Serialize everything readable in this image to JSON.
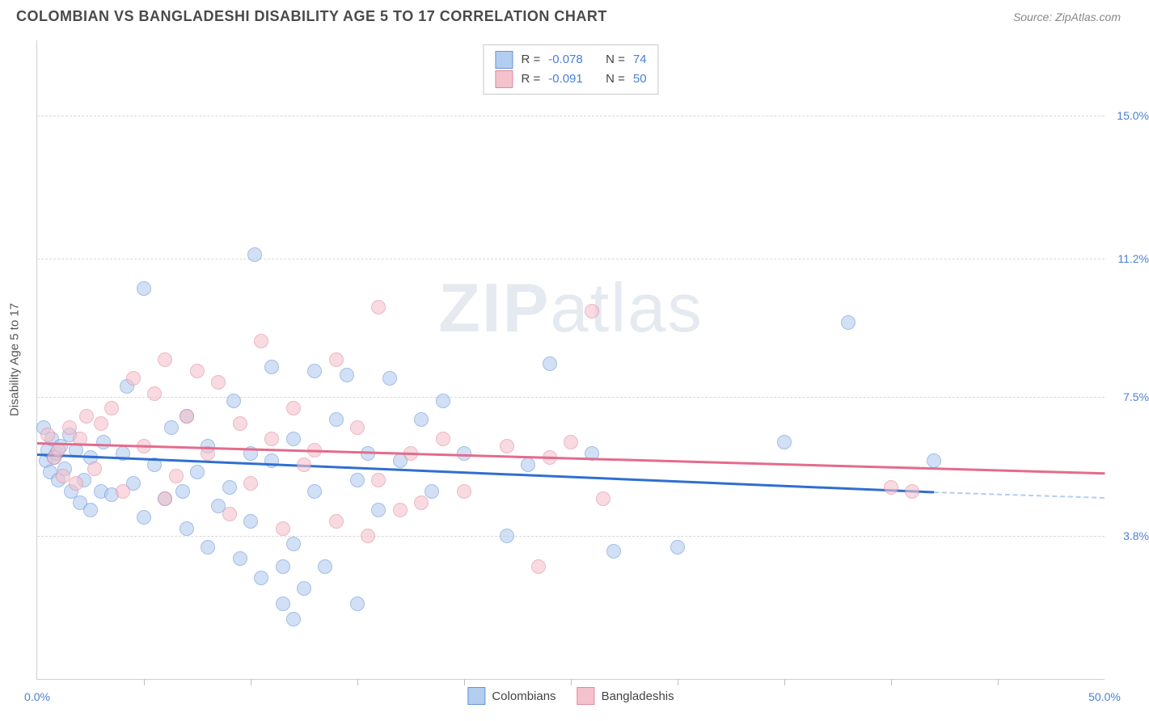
{
  "title": "COLOMBIAN VS BANGLADESHI DISABILITY AGE 5 TO 17 CORRELATION CHART",
  "source": "Source: ZipAtlas.com",
  "watermark": "ZIPatlas",
  "chart": {
    "type": "scatter",
    "ylabel": "Disability Age 5 to 17",
    "xlim": [
      0,
      50
    ],
    "ylim": [
      0,
      17
    ],
    "yticks": [
      {
        "v": 3.8,
        "label": "3.8%"
      },
      {
        "v": 7.5,
        "label": "7.5%"
      },
      {
        "v": 11.2,
        "label": "11.2%"
      },
      {
        "v": 15.0,
        "label": "15.0%"
      }
    ],
    "xticks_minor": [
      5,
      10,
      15,
      20,
      25,
      30,
      35,
      40,
      45
    ],
    "xticks_label": [
      {
        "v": 0,
        "label": "0.0%"
      },
      {
        "v": 50,
        "label": "50.0%"
      }
    ],
    "background_color": "#ffffff",
    "grid_color": "#d8d8d8",
    "series": [
      {
        "name": "Colombians",
        "fill": "#b3cdf0",
        "stroke": "#6694d8",
        "line_color": "#2f6fd0",
        "R": "-0.078",
        "N": "74",
        "trend": {
          "x0": 0,
          "y0": 6.0,
          "x1": 42,
          "y1": 5.0,
          "dash_to_x": 50,
          "dash_y": 4.85
        },
        "points": [
          [
            0.3,
            6.7
          ],
          [
            0.4,
            5.8
          ],
          [
            0.5,
            6.1
          ],
          [
            0.6,
            5.5
          ],
          [
            0.7,
            6.4
          ],
          [
            0.8,
            5.9
          ],
          [
            0.9,
            6.0
          ],
          [
            1.0,
            5.3
          ],
          [
            1.1,
            6.2
          ],
          [
            1.3,
            5.6
          ],
          [
            1.5,
            6.5
          ],
          [
            1.6,
            5.0
          ],
          [
            1.8,
            6.1
          ],
          [
            2.0,
            4.7
          ],
          [
            2.2,
            5.3
          ],
          [
            2.5,
            5.9
          ],
          [
            2.5,
            4.5
          ],
          [
            3.0,
            5.0
          ],
          [
            3.1,
            6.3
          ],
          [
            3.5,
            4.9
          ],
          [
            4.0,
            6.0
          ],
          [
            4.2,
            7.8
          ],
          [
            4.5,
            5.2
          ],
          [
            5.0,
            4.3
          ],
          [
            5.0,
            10.4
          ],
          [
            5.5,
            5.7
          ],
          [
            6.0,
            4.8
          ],
          [
            6.3,
            6.7
          ],
          [
            6.8,
            5.0
          ],
          [
            7.0,
            4.0
          ],
          [
            7.0,
            7.0
          ],
          [
            7.5,
            5.5
          ],
          [
            8.0,
            6.2
          ],
          [
            8.0,
            3.5
          ],
          [
            8.5,
            4.6
          ],
          [
            9.0,
            5.1
          ],
          [
            9.2,
            7.4
          ],
          [
            9.5,
            3.2
          ],
          [
            10.0,
            6.0
          ],
          [
            10.0,
            4.2
          ],
          [
            10.2,
            11.3
          ],
          [
            10.5,
            2.7
          ],
          [
            11.0,
            5.8
          ],
          [
            11.0,
            8.3
          ],
          [
            11.5,
            3.0
          ],
          [
            11.5,
            2.0
          ],
          [
            12.0,
            6.4
          ],
          [
            12.0,
            3.6
          ],
          [
            12.0,
            1.6
          ],
          [
            12.5,
            2.4
          ],
          [
            13.0,
            8.2
          ],
          [
            13.0,
            5.0
          ],
          [
            13.5,
            3.0
          ],
          [
            14.0,
            6.9
          ],
          [
            14.5,
            8.1
          ],
          [
            15.0,
            5.3
          ],
          [
            15.0,
            2.0
          ],
          [
            15.5,
            6.0
          ],
          [
            16.0,
            4.5
          ],
          [
            16.5,
            8.0
          ],
          [
            17.0,
            5.8
          ],
          [
            18.0,
            6.9
          ],
          [
            18.5,
            5.0
          ],
          [
            19.0,
            7.4
          ],
          [
            20.0,
            6.0
          ],
          [
            22.0,
            3.8
          ],
          [
            23.0,
            5.7
          ],
          [
            24.0,
            8.4
          ],
          [
            26.0,
            6.0
          ],
          [
            27.0,
            3.4
          ],
          [
            30.0,
            3.5
          ],
          [
            35.0,
            6.3
          ],
          [
            38.0,
            9.5
          ],
          [
            42.0,
            5.8
          ]
        ]
      },
      {
        "name": "Bangladeshis",
        "fill": "#f4c2cd",
        "stroke": "#e08aa0",
        "line_color": "#e46b8c",
        "R": "-0.091",
        "N": "50",
        "trend": {
          "x0": 0,
          "y0": 6.3,
          "x1": 50,
          "y1": 5.5
        },
        "points": [
          [
            0.5,
            6.5
          ],
          [
            0.8,
            5.9
          ],
          [
            1.0,
            6.1
          ],
          [
            1.2,
            5.4
          ],
          [
            1.5,
            6.7
          ],
          [
            1.8,
            5.2
          ],
          [
            2.0,
            6.4
          ],
          [
            2.3,
            7.0
          ],
          [
            2.7,
            5.6
          ],
          [
            3.0,
            6.8
          ],
          [
            3.5,
            7.2
          ],
          [
            4.0,
            5.0
          ],
          [
            4.5,
            8.0
          ],
          [
            5.0,
            6.2
          ],
          [
            5.5,
            7.6
          ],
          [
            6.0,
            4.8
          ],
          [
            6.0,
            8.5
          ],
          [
            6.5,
            5.4
          ],
          [
            7.0,
            7.0
          ],
          [
            7.5,
            8.2
          ],
          [
            8.0,
            6.0
          ],
          [
            8.5,
            7.9
          ],
          [
            9.0,
            4.4
          ],
          [
            9.5,
            6.8
          ],
          [
            10.0,
            5.2
          ],
          [
            10.5,
            9.0
          ],
          [
            11.0,
            6.4
          ],
          [
            11.5,
            4.0
          ],
          [
            12.0,
            7.2
          ],
          [
            12.5,
            5.7
          ],
          [
            13.0,
            6.1
          ],
          [
            14.0,
            8.5
          ],
          [
            14.0,
            4.2
          ],
          [
            15.0,
            6.7
          ],
          [
            15.5,
            3.8
          ],
          [
            16.0,
            5.3
          ],
          [
            16.0,
            9.9
          ],
          [
            17.0,
            4.5
          ],
          [
            17.5,
            6.0
          ],
          [
            18.0,
            4.7
          ],
          [
            19.0,
            6.4
          ],
          [
            20.0,
            5.0
          ],
          [
            22.0,
            6.2
          ],
          [
            24.0,
            5.9
          ],
          [
            23.5,
            3.0
          ],
          [
            25.0,
            6.3
          ],
          [
            26.0,
            9.8
          ],
          [
            26.5,
            4.8
          ],
          [
            40.0,
            5.1
          ],
          [
            41.0,
            5.0
          ]
        ]
      }
    ]
  }
}
